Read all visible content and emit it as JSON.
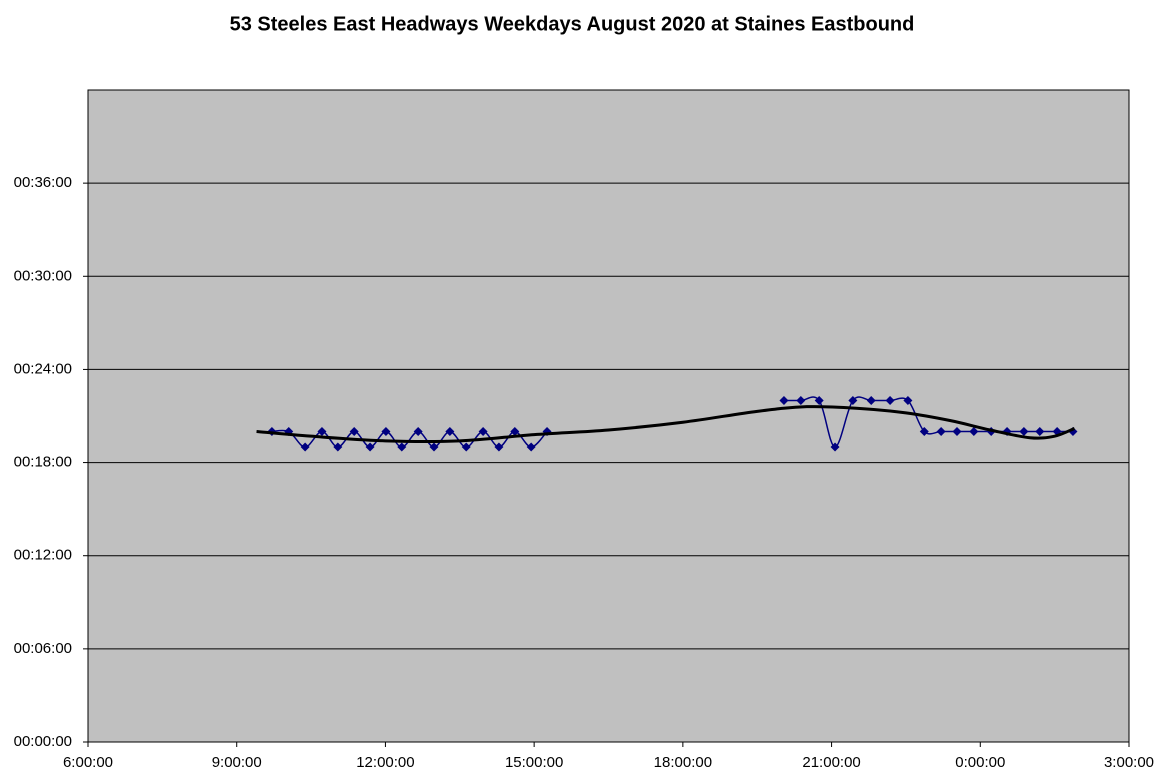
{
  "chart_data": {
    "type": "line",
    "title": "53 Steeles East Headways Weekdays August 2020 at Staines Eastbound",
    "series": [
      {
        "color": "#000080",
        "marker": "diamond",
        "smooth": true,
        "x": [
          9.71,
          10.05,
          10.38,
          10.72,
          11.04,
          11.37,
          11.69,
          12.01,
          12.33,
          12.66,
          12.98,
          13.3,
          13.63,
          13.97,
          14.29,
          14.61,
          14.94,
          15.26,
          null,
          20.04,
          20.38,
          20.75,
          21.07,
          21.43,
          21.8,
          22.18,
          22.54,
          22.87,
          23.21,
          23.53,
          23.87,
          24.22,
          24.54,
          24.88,
          25.2,
          25.55,
          25.87
        ],
        "values": [
          20,
          20,
          19,
          20,
          19,
          20,
          19,
          20,
          19,
          20,
          19,
          20,
          19,
          20,
          19,
          20,
          19,
          20,
          null,
          22,
          22,
          22,
          19,
          22,
          22,
          22,
          22,
          20,
          20,
          20,
          20,
          20,
          20,
          20,
          20,
          20,
          20
        ]
      },
      {
        "color": "#000000",
        "smooth": true,
        "x": [
          9.4,
          10.5,
          12,
          13.5,
          15,
          16.5,
          18,
          19.5,
          20.5,
          21.5,
          22.5,
          23.4,
          24.2,
          25,
          25.5,
          25.9
        ],
        "values": [
          20,
          19.7,
          19.4,
          19.4,
          19.8,
          20.1,
          20.6,
          21.3,
          21.6,
          21.5,
          21.2,
          20.7,
          20.1,
          19.6,
          19.7,
          20.2
        ]
      }
    ],
    "xlim": [
      6,
      27
    ],
    "xticks": [
      {
        "value": 6,
        "label": "6:00:00"
      },
      {
        "value": 9,
        "label": "9:00:00"
      },
      {
        "value": 12,
        "label": "12:00:00"
      },
      {
        "value": 15,
        "label": "15:00:00"
      },
      {
        "value": 18,
        "label": "18:00:00"
      },
      {
        "value": 21,
        "label": "21:00:00"
      },
      {
        "value": 24,
        "label": "0:00:00"
      },
      {
        "value": 27,
        "label": "3:00:00"
      }
    ],
    "ylim": [
      0,
      42
    ],
    "yticks": [
      {
        "value": 0,
        "label": "00:00:00"
      },
      {
        "value": 6,
        "label": "00:06:00"
      },
      {
        "value": 12,
        "label": "00:12:00"
      },
      {
        "value": 18,
        "label": "00:18:00"
      },
      {
        "value": 24,
        "label": "00:24:00"
      },
      {
        "value": 30,
        "label": "00:30:00"
      },
      {
        "value": 36,
        "label": "00:36:00"
      }
    ],
    "grid": true
  }
}
